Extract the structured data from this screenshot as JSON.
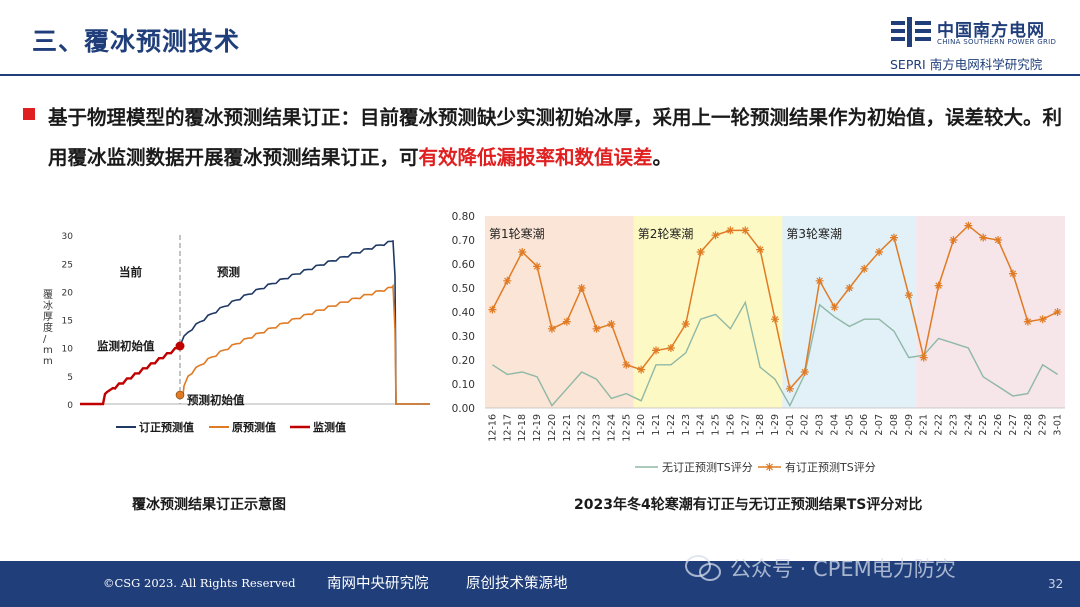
{
  "header": {
    "title": "三、覆冰预测技术",
    "logo_cn": "中国南方电网",
    "logo_en": "CHINA SOUTHERN POWER GRID",
    "logo_sub": "SEPRI 南方电网科学研究院"
  },
  "bullet": {
    "text_main": "基于物理模型的覆冰预测结果订正：目前覆冰预测缺少实测初始冰厚，采用上一轮预测结果作为初始值，误差较大。利用覆冰监测数据开展覆冰预测结果订正，可",
    "text_highlight": "有效降低漏报率和数值误差",
    "text_end": "。"
  },
  "left_chart": {
    "caption": "覆冰预测结果订正示意图",
    "ylabel_chars": [
      "覆",
      "冰",
      "厚",
      "度",
      "/",
      "m",
      "m"
    ],
    "yticks": [
      "30",
      "25",
      "20",
      "15",
      "10",
      "5",
      "0"
    ],
    "label_current": "当前",
    "label_forecast": "预测",
    "annotation_monitor": "监测初始值",
    "annotation_forecast": "预测初始值",
    "legend": [
      "订正预测值",
      "原预测值",
      "监测值"
    ],
    "colors": {
      "corrected": "#1f3864",
      "original": "#e07b24",
      "monitored": "#c00000"
    }
  },
  "chart_data": {
    "type": "line",
    "title": "2023年冬4轮寒潮有订正与无订正预测结果TS评分对比",
    "categories": [
      "12-16",
      "12-17",
      "12-18",
      "12-19",
      "12-20",
      "12-21",
      "12-22",
      "12-23",
      "12-24",
      "12-25",
      "1-20",
      "1-21",
      "1-22",
      "1-23",
      "1-24",
      "1-25",
      "1-26",
      "1-27",
      "1-28",
      "1-29",
      "2-01",
      "2-02",
      "2-03",
      "2-04",
      "2-05",
      "2-06",
      "2-07",
      "2-08",
      "2-09",
      "2-21",
      "2-22",
      "2-23",
      "2-24",
      "2-25",
      "2-26",
      "2-27",
      "2-28",
      "2-29",
      "3-01"
    ],
    "ylim": [
      0,
      0.8
    ],
    "yticks": [
      "0.00",
      "0.10",
      "0.20",
      "0.30",
      "0.40",
      "0.50",
      "0.60",
      "0.70",
      "0.80"
    ],
    "regions": [
      {
        "label": "第1轮寒潮",
        "start": 0,
        "end": 9,
        "color": "#fbe5d6"
      },
      {
        "label": "第2轮寒潮",
        "start": 10,
        "end": 19,
        "color": "#fdf9c4"
      },
      {
        "label": "第3轮寒潮",
        "start": 20,
        "end": 28,
        "color": "#e2f0f8"
      },
      {
        "label": "",
        "start": 29,
        "end": 38,
        "color": "#f6e6ea"
      }
    ],
    "series": [
      {
        "name": "无订正预测TS评分",
        "color": "#8fb8a6",
        "marker": "none",
        "values": [
          0.18,
          0.14,
          0.15,
          0.13,
          0.01,
          0.08,
          0.15,
          0.12,
          0.04,
          0.06,
          0.03,
          0.18,
          0.18,
          0.23,
          0.37,
          0.39,
          0.33,
          0.44,
          0.17,
          0.12,
          0.01,
          0.14,
          0.43,
          0.38,
          0.34,
          0.37,
          0.37,
          0.32,
          0.21,
          0.22,
          0.29,
          0.27,
          0.25,
          0.13,
          0.09,
          0.05,
          0.06,
          0.18,
          0.14
        ]
      },
      {
        "name": "有订正预测TS评分",
        "color": "#e07b24",
        "marker": "star",
        "values": [
          0.41,
          0.53,
          0.65,
          0.59,
          0.33,
          0.36,
          0.5,
          0.33,
          0.35,
          0.18,
          0.16,
          0.24,
          0.25,
          0.35,
          0.65,
          0.72,
          0.74,
          0.74,
          0.66,
          0.37,
          0.08,
          0.15,
          0.53,
          0.42,
          0.5,
          0.58,
          0.65,
          0.71,
          0.47,
          0.21,
          0.51,
          0.7,
          0.76,
          0.71,
          0.7,
          0.56,
          0.36,
          0.37,
          0.4
        ]
      }
    ]
  },
  "footer": {
    "copyright": "©CSG 2023. All Rights Reserved",
    "org": "南网中央研究院",
    "slogan": "原创技术策源地",
    "watermark": "公众号 · CPEM电力防灾",
    "page": "32"
  }
}
